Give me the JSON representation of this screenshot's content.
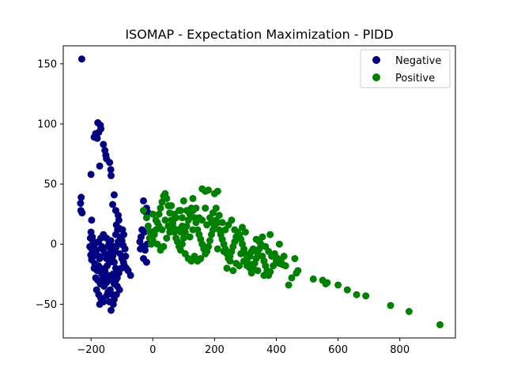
{
  "chart_data": {
    "type": "scatter",
    "title": "ISOMAP - Expectation Maximization - PIDD",
    "xlabel": "",
    "ylabel": "",
    "xlim": [
      -290,
      980
    ],
    "ylim": [
      -78,
      165
    ],
    "xticks": [
      -200,
      0,
      200,
      400,
      600,
      800
    ],
    "yticks": [
      -50,
      0,
      50,
      100,
      150
    ],
    "grid": false,
    "legend_position": "top-right",
    "series": [
      {
        "name": "Negative",
        "color": "#000080",
        "points": [
          [
            -230,
            154
          ],
          [
            -232,
            39
          ],
          [
            -234,
            34
          ],
          [
            -233,
            28
          ],
          [
            -229,
            26
          ],
          [
            -190,
            89
          ],
          [
            -180,
            88
          ],
          [
            -175,
            93
          ],
          [
            -178,
            101
          ],
          [
            -170,
            99
          ],
          [
            -168,
            96
          ],
          [
            -185,
            92
          ],
          [
            -160,
            83
          ],
          [
            -155,
            78
          ],
          [
            -152,
            74
          ],
          [
            -150,
            71
          ],
          [
            -172,
            65
          ],
          [
            -140,
            68
          ],
          [
            -136,
            62
          ],
          [
            -135,
            57
          ],
          [
            -200,
            58
          ],
          [
            -125,
            41
          ],
          [
            -130,
            33
          ],
          [
            -120,
            28
          ],
          [
            -112,
            24
          ],
          [
            -110,
            20
          ],
          [
            -118,
            16
          ],
          [
            -108,
            13
          ],
          [
            -198,
            20
          ],
          [
            -200,
            10
          ],
          [
            -196,
            6
          ],
          [
            -202,
            5
          ],
          [
            -195,
            3
          ],
          [
            -204,
            -2
          ],
          [
            -200,
            -3
          ],
          [
            -196,
            -5
          ],
          [
            -201,
            -9
          ],
          [
            -192,
            -10
          ],
          [
            -198,
            -13
          ],
          [
            -188,
            -16
          ],
          [
            -190,
            -20
          ],
          [
            -180,
            -22
          ],
          [
            -176,
            -18
          ],
          [
            -172,
            -12
          ],
          [
            -185,
            -28
          ],
          [
            -178,
            -30
          ],
          [
            -170,
            -33
          ],
          [
            -182,
            -38
          ],
          [
            -175,
            -42
          ],
          [
            -168,
            -45
          ],
          [
            -160,
            -48
          ],
          [
            -150,
            -43
          ],
          [
            -145,
            -40
          ],
          [
            -138,
            -38
          ],
          [
            -130,
            -42
          ],
          [
            -125,
            -46
          ],
          [
            -135,
            -55
          ],
          [
            -172,
            -50
          ],
          [
            -158,
            -35
          ],
          [
            -165,
            -25
          ],
          [
            -155,
            -22
          ],
          [
            -148,
            -18
          ],
          [
            -140,
            -15
          ],
          [
            -132,
            -12
          ],
          [
            -128,
            -8
          ],
          [
            -122,
            -5
          ],
          [
            -118,
            -2
          ],
          [
            -112,
            2
          ],
          [
            -105,
            6
          ],
          [
            -100,
            3
          ],
          [
            -96,
            -1
          ],
          [
            -94,
            8
          ],
          [
            -98,
            12
          ],
          [
            -90,
            -4
          ],
          [
            -88,
            -10
          ],
          [
            -95,
            -15
          ],
          [
            -102,
            -20
          ],
          [
            -110,
            -24
          ],
          [
            -115,
            -28
          ],
          [
            -120,
            -30
          ],
          [
            -125,
            -33
          ],
          [
            -130,
            -25
          ],
          [
            -136,
            -28
          ],
          [
            -142,
            -30
          ],
          [
            -146,
            -26
          ],
          [
            -150,
            -32
          ],
          [
            -156,
            -28
          ],
          [
            -162,
            -30
          ],
          [
            -168,
            -20
          ],
          [
            -175,
            -10
          ],
          [
            -182,
            -5
          ],
          [
            -188,
            0
          ],
          [
            -176,
            2
          ],
          [
            -168,
            5
          ],
          [
            -160,
            8
          ],
          [
            -150,
            5
          ],
          [
            -142,
            0
          ],
          [
            -136,
            3
          ],
          [
            -128,
            -2
          ],
          [
            -120,
            8
          ],
          [
            -114,
            12
          ],
          [
            -106,
            -8
          ],
          [
            -100,
            -12
          ],
          [
            -92,
            -18
          ],
          [
            -86,
            -20
          ],
          [
            -80,
            -22
          ],
          [
            -72,
            -26
          ],
          [
            -120,
            -20
          ],
          [
            -125,
            -15
          ],
          [
            -130,
            -10
          ],
          [
            -135,
            -5
          ],
          [
            -140,
            -8
          ],
          [
            -145,
            -2
          ],
          [
            -150,
            -12
          ],
          [
            -155,
            -8
          ],
          [
            -160,
            -5
          ],
          [
            -165,
            -2
          ],
          [
            -115,
            -35
          ],
          [
            -108,
            -38
          ],
          [
            -118,
            -42
          ],
          [
            -140,
            -48
          ],
          [
            -128,
            -50
          ],
          [
            -30,
            36
          ],
          [
            -20,
            30
          ],
          [
            -25,
            27
          ],
          [
            -15,
            26
          ],
          [
            -28,
            10
          ],
          [
            -35,
            12
          ],
          [
            -38,
            6
          ],
          [
            -32,
            -2
          ],
          [
            -25,
            -5
          ],
          [
            -30,
            -12
          ],
          [
            -20,
            -15
          ],
          [
            -18,
            0
          ],
          [
            -10,
            5
          ],
          [
            -5,
            10
          ],
          [
            -40,
            -4
          ],
          [
            -42,
            2
          ]
        ]
      },
      {
        "name": "Positive",
        "color": "#008000",
        "points": [
          [
            -30,
            28
          ],
          [
            -20,
            22
          ],
          [
            -15,
            15
          ],
          [
            -10,
            10
          ],
          [
            -8,
            5
          ],
          [
            -5,
            0
          ],
          [
            0,
            3
          ],
          [
            5,
            8
          ],
          [
            10,
            12
          ],
          [
            15,
            18
          ],
          [
            20,
            25
          ],
          [
            25,
            30
          ],
          [
            30,
            35
          ],
          [
            35,
            40
          ],
          [
            40,
            42
          ],
          [
            45,
            38
          ],
          [
            50,
            32
          ],
          [
            55,
            26
          ],
          [
            60,
            20
          ],
          [
            65,
            15
          ],
          [
            70,
            10
          ],
          [
            75,
            5
          ],
          [
            80,
            2
          ],
          [
            85,
            -2
          ],
          [
            90,
            -5
          ],
          [
            95,
            0
          ],
          [
            100,
            5
          ],
          [
            105,
            10
          ],
          [
            110,
            15
          ],
          [
            115,
            20
          ],
          [
            120,
            25
          ],
          [
            125,
            30
          ],
          [
            130,
            28
          ],
          [
            135,
            22
          ],
          [
            140,
            18
          ],
          [
            145,
            12
          ],
          [
            150,
            8
          ],
          [
            155,
            4
          ],
          [
            160,
            0
          ],
          [
            165,
            -4
          ],
          [
            170,
            -8
          ],
          [
            175,
            -6
          ],
          [
            180,
            -2
          ],
          [
            185,
            3
          ],
          [
            190,
            8
          ],
          [
            195,
            12
          ],
          [
            200,
            15
          ],
          [
            205,
            20
          ],
          [
            210,
            18
          ],
          [
            215,
            12
          ],
          [
            220,
            8
          ],
          [
            225,
            4
          ],
          [
            230,
            0
          ],
          [
            235,
            -4
          ],
          [
            240,
            -8
          ],
          [
            245,
            -12
          ],
          [
            250,
            -10
          ],
          [
            255,
            -6
          ],
          [
            260,
            -2
          ],
          [
            265,
            2
          ],
          [
            270,
            6
          ],
          [
            275,
            10
          ],
          [
            280,
            8
          ],
          [
            285,
            4
          ],
          [
            290,
            0
          ],
          [
            295,
            -4
          ],
          [
            300,
            -8
          ],
          [
            305,
            -12
          ],
          [
            310,
            -16
          ],
          [
            315,
            -20
          ],
          [
            320,
            -24
          ],
          [
            325,
            -20
          ],
          [
            330,
            -16
          ],
          [
            335,
            -12
          ],
          [
            340,
            -8
          ],
          [
            345,
            -4
          ],
          [
            350,
            0
          ],
          [
            355,
            -10
          ],
          [
            360,
            -14
          ],
          [
            365,
            -18
          ],
          [
            370,
            -22
          ],
          [
            375,
            -26
          ],
          [
            380,
            -23
          ],
          [
            390,
            -18
          ],
          [
            400,
            -14
          ],
          [
            410,
            -16
          ],
          [
            420,
            -17
          ],
          [
            430,
            -18
          ],
          [
            440,
            -34
          ],
          [
            450,
            -28
          ],
          [
            460,
            -12
          ],
          [
            465,
            -24
          ],
          [
            470,
            -22
          ],
          [
            520,
            -29
          ],
          [
            550,
            -30
          ],
          [
            560,
            -33
          ],
          [
            565,
            -32
          ],
          [
            600,
            -34
          ],
          [
            630,
            -38
          ],
          [
            660,
            -42
          ],
          [
            690,
            -43
          ],
          [
            770,
            -51
          ],
          [
            830,
            -56
          ],
          [
            930,
            -67
          ],
          [
            180,
            45
          ],
          [
            160,
            46
          ],
          [
            200,
            42
          ],
          [
            210,
            44
          ],
          [
            170,
            44
          ],
          [
            130,
            38
          ],
          [
            100,
            36
          ],
          [
            90,
            28
          ],
          [
            60,
            32
          ],
          [
            40,
            20
          ],
          [
            20,
            15
          ],
          [
            10,
            20
          ],
          [
            0,
            25
          ],
          [
            15,
            0
          ],
          [
            25,
            -5
          ],
          [
            35,
            -2
          ],
          [
            45,
            5
          ],
          [
            55,
            10
          ],
          [
            65,
            18
          ],
          [
            75,
            22
          ],
          [
            85,
            28
          ],
          [
            95,
            15
          ],
          [
            105,
            -8
          ],
          [
            115,
            -12
          ],
          [
            125,
            -14
          ],
          [
            135,
            -10
          ],
          [
            145,
            -14
          ],
          [
            155,
            -12
          ],
          [
            175,
            16
          ],
          [
            185,
            22
          ],
          [
            195,
            26
          ],
          [
            205,
            30
          ],
          [
            215,
            24
          ],
          [
            225,
            18
          ],
          [
            235,
            12
          ],
          [
            245,
            16
          ],
          [
            255,
            20
          ],
          [
            265,
            12
          ],
          [
            275,
            6
          ],
          [
            285,
            -8
          ],
          [
            295,
            -14
          ],
          [
            305,
            -18
          ],
          [
            315,
            -10
          ],
          [
            325,
            -4
          ],
          [
            335,
            4
          ],
          [
            345,
            2
          ],
          [
            355,
            6
          ],
          [
            365,
            -2
          ],
          [
            375,
            -6
          ],
          [
            385,
            -10
          ],
          [
            395,
            -8
          ],
          [
            405,
            -12
          ],
          [
            415,
            -14
          ],
          [
            425,
            -10
          ],
          [
            380,
            8
          ],
          [
            410,
            0
          ],
          [
            290,
            14
          ],
          [
            300,
            10
          ],
          [
            320,
            -6
          ],
          [
            340,
            -22
          ],
          [
            360,
            -26
          ],
          [
            30,
            12
          ],
          [
            50,
            15
          ],
          [
            70,
            25
          ],
          [
            90,
            10
          ],
          [
            110,
            28
          ],
          [
            130,
            12
          ],
          [
            150,
            22
          ],
          [
            170,
            30
          ],
          [
            190,
            18
          ],
          [
            210,
            -4
          ],
          [
            230,
            -6
          ],
          [
            250,
            -14
          ],
          [
            270,
            -16
          ],
          [
            280,
            -18
          ],
          [
            260,
            -22
          ],
          [
            240,
            -20
          ],
          [
            80,
            12
          ],
          [
            95,
            22
          ],
          [
            120,
            6
          ],
          [
            140,
            30
          ],
          [
            160,
            20
          ]
        ]
      }
    ]
  }
}
